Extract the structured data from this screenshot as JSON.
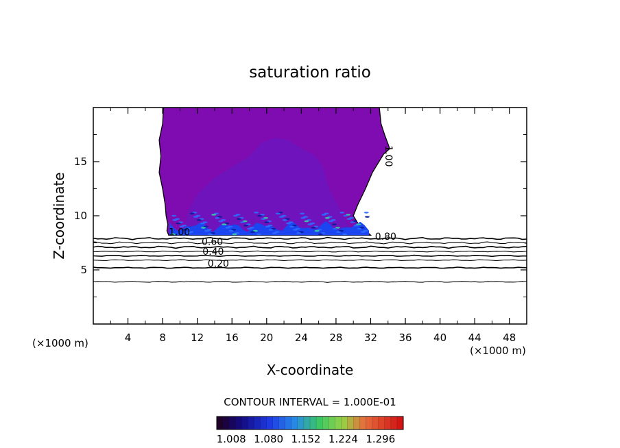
{
  "chart_data": {
    "type": "contour",
    "title": "saturation ratio",
    "xlabel": "X-coordinate",
    "ylabel": "Z-coordinate",
    "x_unit_left": "(×1000 m)",
    "x_unit_right": "(×1000 m)",
    "xlim": [
      0,
      50
    ],
    "ylim": [
      0,
      20
    ],
    "xticks": [
      4,
      8,
      12,
      16,
      20,
      24,
      28,
      32,
      36,
      40,
      44,
      48
    ],
    "yticks": [
      5,
      10,
      15
    ],
    "contour_interval_text": "CONTOUR INTERVAL = 1.000E-01",
    "colorbar": {
      "labels": [
        "1.008",
        "1.080",
        "1.152",
        "1.224",
        "1.296"
      ],
      "values": [
        1.008,
        1.08,
        1.152,
        1.224,
        1.296
      ],
      "range": [
        0.98,
        1.34
      ],
      "segments": 30
    },
    "contour_lines": [
      {
        "label": "0.20",
        "x": 13.2,
        "z": 5.3
      },
      {
        "label": "0.40",
        "x": 12.6,
        "z": 6.4
      },
      {
        "label": "0.60",
        "x": 12.5,
        "z": 7.3
      },
      {
        "label": "0.80",
        "x": 32.5,
        "z": 7.8
      },
      {
        "label": "1.00",
        "x": 8.7,
        "z": 8.2
      },
      {
        "label": "1.00",
        "x": 33.7,
        "z": 16.5
      }
    ],
    "background_levels_z": [
      3.9,
      5.2,
      5.9,
      6.3,
      6.7,
      7.1,
      7.5,
      7.9
    ],
    "supersaturated_region": {
      "x_range": [
        8.7,
        32.0
      ],
      "z_range": [
        8.2,
        20.0
      ],
      "fill_color": "#7f0cb0",
      "inner_color": "#6c16c0",
      "base_color": "#1a45f0"
    }
  }
}
